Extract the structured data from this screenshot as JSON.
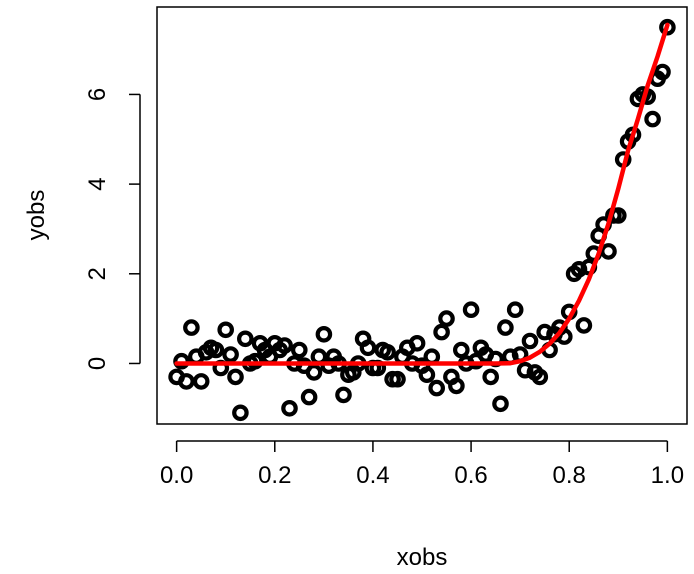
{
  "chart_data": {
    "type": "scatter",
    "xlabel": "xobs",
    "ylabel": "yobs",
    "xlim": [
      -0.04,
      1.04
    ],
    "ylim": [
      -1.35,
      7.95
    ],
    "x_ticks": [
      0.0,
      0.2,
      0.4,
      0.6,
      0.8,
      1.0
    ],
    "x_tick_labels": [
      "0.0",
      "0.2",
      "0.4",
      "0.6",
      "0.8",
      "1.0"
    ],
    "y_ticks": [
      0,
      2,
      4,
      6
    ],
    "y_tick_labels": [
      "0",
      "2",
      "4",
      "6"
    ],
    "grid": false,
    "series": [
      {
        "kind": "points",
        "color": "#000000",
        "x": [
          0.0,
          0.01,
          0.02,
          0.03,
          0.04,
          0.05,
          0.06,
          0.07,
          0.08,
          0.09,
          0.1,
          0.11,
          0.12,
          0.13,
          0.14,
          0.15,
          0.16,
          0.17,
          0.18,
          0.19,
          0.2,
          0.21,
          0.22,
          0.23,
          0.24,
          0.25,
          0.26,
          0.27,
          0.28,
          0.29,
          0.3,
          0.31,
          0.32,
          0.33,
          0.34,
          0.35,
          0.36,
          0.37,
          0.38,
          0.39,
          0.4,
          0.41,
          0.42,
          0.43,
          0.44,
          0.45,
          0.46,
          0.47,
          0.48,
          0.49,
          0.5,
          0.51,
          0.52,
          0.53,
          0.54,
          0.55,
          0.56,
          0.57,
          0.58,
          0.59,
          0.6,
          0.61,
          0.62,
          0.63,
          0.64,
          0.65,
          0.66,
          0.67,
          0.68,
          0.69,
          0.7,
          0.71,
          0.72,
          0.73,
          0.74,
          0.75,
          0.76,
          0.77,
          0.78,
          0.79,
          0.8,
          0.81,
          0.82,
          0.83,
          0.84,
          0.85,
          0.86,
          0.87,
          0.88,
          0.89,
          0.9,
          0.91,
          0.92,
          0.93,
          0.94,
          0.95,
          0.96,
          0.97,
          0.98,
          0.99,
          1.0
        ],
        "y": [
          -0.3,
          0.05,
          -0.4,
          0.8,
          0.15,
          -0.4,
          0.25,
          0.35,
          0.3,
          -0.1,
          0.75,
          0.2,
          -0.3,
          -1.1,
          0.55,
          0.0,
          0.05,
          0.45,
          0.3,
          0.15,
          0.45,
          0.3,
          0.4,
          -1.0,
          0.0,
          0.3,
          -0.05,
          -0.75,
          -0.2,
          0.15,
          0.65,
          -0.05,
          0.15,
          0.0,
          -0.7,
          -0.25,
          -0.2,
          0.0,
          0.55,
          0.35,
          -0.1,
          -0.1,
          0.3,
          0.25,
          -0.35,
          -0.35,
          0.15,
          0.35,
          0.0,
          0.45,
          -0.05,
          -0.25,
          0.15,
          -0.55,
          0.7,
          1.0,
          -0.3,
          -0.5,
          0.3,
          0.0,
          1.2,
          0.05,
          0.35,
          0.2,
          -0.3,
          0.1,
          -0.9,
          0.8,
          0.15,
          1.2,
          0.2,
          -0.15,
          0.5,
          -0.2,
          -0.3,
          0.7,
          0.3,
          0.65,
          0.8,
          0.6,
          1.15,
          2.0,
          2.1,
          0.85,
          2.15,
          2.45,
          2.85,
          3.1,
          2.5,
          3.3,
          3.3,
          4.55,
          4.95,
          5.1,
          5.9,
          6.0,
          5.95,
          5.45,
          6.35,
          6.5,
          7.5
        ]
      },
      {
        "kind": "line",
        "color": "#ff0000",
        "x": [
          0.0,
          0.05,
          0.1,
          0.15,
          0.2,
          0.25,
          0.3,
          0.35,
          0.4,
          0.45,
          0.5,
          0.55,
          0.6,
          0.65,
          0.68,
          0.7,
          0.72,
          0.74,
          0.76,
          0.78,
          0.8,
          0.82,
          0.84,
          0.86,
          0.88,
          0.9,
          0.92,
          0.94,
          0.96,
          0.98,
          1.0
        ],
        "y": [
          0.0,
          0.0,
          0.0,
          0.0,
          0.0,
          0.0,
          0.0,
          0.0,
          0.0,
          0.0,
          0.0,
          0.0,
          0.0,
          0.0,
          0.005,
          0.05,
          0.13,
          0.26,
          0.44,
          0.68,
          1.0,
          1.4,
          1.88,
          2.45,
          3.12,
          3.9,
          4.75,
          5.45,
          6.2,
          6.85,
          7.55
        ]
      }
    ]
  }
}
